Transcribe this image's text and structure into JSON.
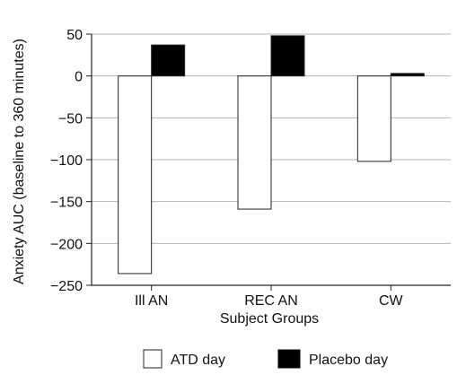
{
  "chart_data": {
    "type": "bar",
    "title": "",
    "xlabel": "Subject Groups",
    "ylabel": "Anxiety AUC (baseline to 360 minutes)",
    "categories": [
      "Ill AN",
      "REC AN",
      "CW"
    ],
    "series": [
      {
        "name": "ATD day",
        "values": [
          -236,
          -159,
          -102
        ],
        "color": "#ffffff"
      },
      {
        "name": "Placebo day",
        "values": [
          37,
          48,
          3
        ],
        "color": "#000000"
      }
    ],
    "ylim": [
      -250,
      50
    ],
    "yticks": [
      50,
      0,
      -50,
      -100,
      -150,
      -200,
      -250
    ],
    "grid": true,
    "legend_position": "bottom"
  }
}
